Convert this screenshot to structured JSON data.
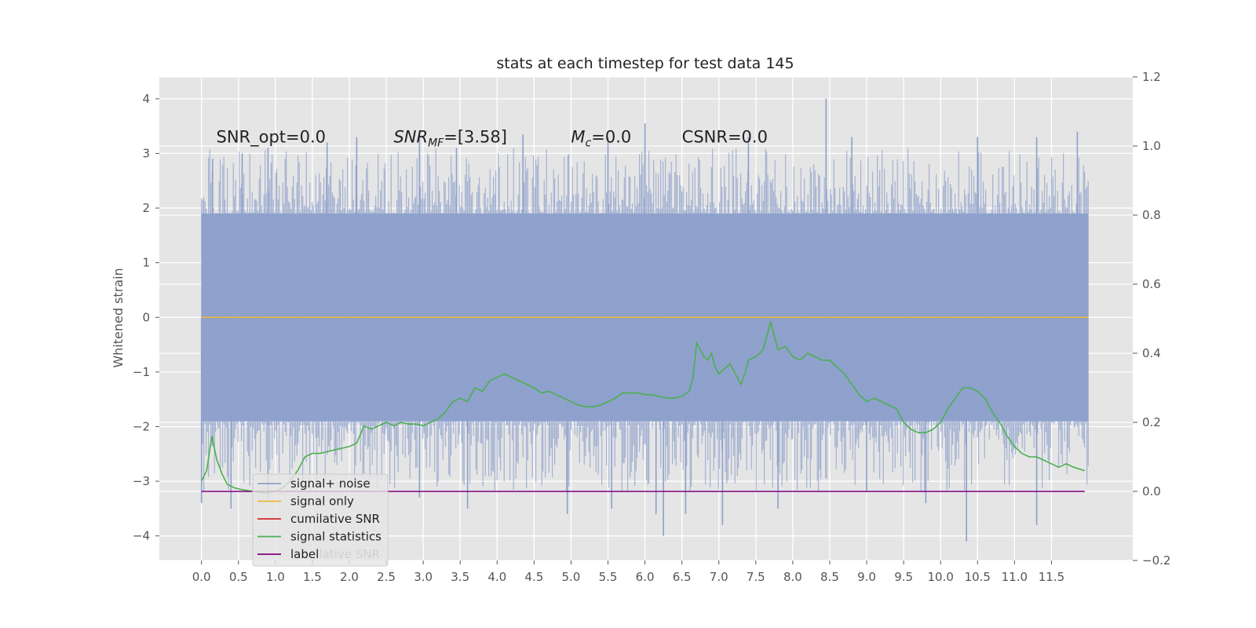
{
  "chart_data": {
    "type": "line",
    "title": "stats at each timestep for test data 145",
    "xlabel": "",
    "ylabel": "Whitened strain",
    "y2label": "",
    "xlim": [
      -0.57,
      12.6
    ],
    "ylim": [
      -4.45,
      4.4
    ],
    "y2lim": [
      -0.2,
      1.2
    ],
    "xticks": [
      "0.0",
      "0.5",
      "1.0",
      "1.5",
      "2.0",
      "2.5",
      "3.0",
      "3.5",
      "4.0",
      "4.5",
      "5.0",
      "5.5",
      "6.0",
      "6.5",
      "7.0",
      "7.5",
      "8.0",
      "8.5",
      "9.0",
      "9.5",
      "10.0",
      "10.5",
      "11.0",
      "11.5"
    ],
    "yticks": [
      "4",
      "3",
      "2",
      "1",
      "0",
      "−1",
      "−2",
      "−3",
      "−4"
    ],
    "y2ticks": [
      "1.2",
      "1.0",
      "0.8",
      "0.6",
      "0.4",
      "0.2",
      "0.0",
      "−0.2"
    ],
    "grid": true,
    "legend_position": "lower-left",
    "annotations": [
      {
        "text": "SNR_opt=0.0",
        "x": 0.2,
        "y": 3.2
      },
      {
        "text": "SNR_MF=[3.58]",
        "main": "SNR",
        "sub": "MF",
        "rest": "=[3.58]",
        "x": 2.6,
        "y": 3.2
      },
      {
        "text": "M_c=0.0",
        "main": "M",
        "sub": "c",
        "rest": "=0.0",
        "x": 5.0,
        "y": 3.2
      },
      {
        "text": "CSNR=0.0",
        "x": 6.5,
        "y": 3.2
      }
    ],
    "series": [
      {
        "name": "signal+ noise",
        "color": "#8da0cb",
        "axis": "left",
        "kind": "noise",
        "x_range": [
          0.0,
          12.0
        ],
        "band": [
          -1.9,
          1.9
        ],
        "peaks_up": [
          [
            0.15,
            2.9
          ],
          [
            0.55,
            3.0
          ],
          [
            0.9,
            3.1
          ],
          [
            1.7,
            3.2
          ],
          [
            2.1,
            3.3
          ],
          [
            2.95,
            3.4
          ],
          [
            3.45,
            3.1
          ],
          [
            4.35,
            3.35
          ],
          [
            5.5,
            3.3
          ],
          [
            6.0,
            3.55
          ],
          [
            7.4,
            3.3
          ],
          [
            8.45,
            4.0
          ],
          [
            8.8,
            3.3
          ],
          [
            10.5,
            3.3
          ],
          [
            11.3,
            3.3
          ],
          [
            11.85,
            3.4
          ]
        ],
        "peaks_down": [
          [
            0.0,
            -3.4
          ],
          [
            0.4,
            -3.5
          ],
          [
            0.9,
            -3.3
          ],
          [
            2.95,
            -3.3
          ],
          [
            3.6,
            -3.5
          ],
          [
            4.95,
            -3.6
          ],
          [
            5.55,
            -3.5
          ],
          [
            6.15,
            -3.6
          ],
          [
            6.25,
            -4.0
          ],
          [
            6.55,
            -3.6
          ],
          [
            7.05,
            -3.8
          ],
          [
            7.8,
            -3.5
          ],
          [
            9.0,
            -3.2
          ],
          [
            9.8,
            -3.4
          ],
          [
            10.35,
            -4.1
          ],
          [
            11.3,
            -3.8
          ]
        ]
      },
      {
        "name": "signal only",
        "color": "#f0b53c",
        "axis": "left",
        "x": [
          0.0,
          12.0
        ],
        "values": [
          0.0,
          0.0
        ]
      },
      {
        "name": "cumilative SNR",
        "color": "#d62728",
        "axis": "right",
        "x": [],
        "values": []
      },
      {
        "name": "signal statistics",
        "color": "#4caf50",
        "axis": "right",
        "x": [
          0.0,
          0.07,
          0.14,
          0.21,
          0.28,
          0.35,
          0.45,
          0.55,
          0.7,
          0.85,
          1.0,
          1.1,
          1.2,
          1.3,
          1.4,
          1.5,
          1.6,
          1.7,
          1.8,
          1.9,
          2.0,
          2.1,
          2.2,
          2.3,
          2.4,
          2.5,
          2.6,
          2.7,
          2.8,
          2.9,
          3.0,
          3.1,
          3.2,
          3.3,
          3.4,
          3.5,
          3.6,
          3.7,
          3.8,
          3.9,
          4.0,
          4.1,
          4.2,
          4.3,
          4.4,
          4.5,
          4.6,
          4.7,
          4.8,
          4.9,
          5.0,
          5.1,
          5.2,
          5.3,
          5.4,
          5.5,
          5.6,
          5.7,
          5.8,
          5.9,
          6.0,
          6.1,
          6.2,
          6.3,
          6.4,
          6.5,
          6.6,
          6.65,
          6.7,
          6.75,
          6.8,
          6.85,
          6.9,
          6.95,
          7.0,
          7.05,
          7.1,
          7.15,
          7.2,
          7.3,
          7.35,
          7.4,
          7.5,
          7.55,
          7.6,
          7.65,
          7.7,
          7.75,
          7.8,
          7.9,
          8.0,
          8.1,
          8.2,
          8.3,
          8.4,
          8.5,
          8.6,
          8.7,
          8.8,
          8.9,
          9.0,
          9.1,
          9.2,
          9.3,
          9.4,
          9.5,
          9.6,
          9.7,
          9.8,
          9.9,
          10.0,
          10.1,
          10.2,
          10.3,
          10.4,
          10.5,
          10.6,
          10.7,
          10.8,
          10.9,
          11.0,
          11.1,
          11.2,
          11.3,
          11.4,
          11.5,
          11.6,
          11.7,
          11.8,
          11.95
        ],
        "values": [
          0.03,
          0.06,
          0.16,
          0.09,
          0.05,
          0.02,
          0.01,
          0.005,
          0.0,
          -0.005,
          0.0,
          0.01,
          0.03,
          0.06,
          0.1,
          0.11,
          0.11,
          0.115,
          0.12,
          0.125,
          0.13,
          0.14,
          0.19,
          0.18,
          0.19,
          0.2,
          0.19,
          0.2,
          0.195,
          0.195,
          0.19,
          0.2,
          0.21,
          0.23,
          0.26,
          0.27,
          0.26,
          0.3,
          0.29,
          0.32,
          0.33,
          0.34,
          0.33,
          0.32,
          0.31,
          0.3,
          0.285,
          0.29,
          0.28,
          0.27,
          0.26,
          0.25,
          0.245,
          0.245,
          0.25,
          0.26,
          0.27,
          0.285,
          0.285,
          0.285,
          0.28,
          0.28,
          0.275,
          0.27,
          0.27,
          0.275,
          0.29,
          0.33,
          0.43,
          0.41,
          0.39,
          0.38,
          0.4,
          0.36,
          0.34,
          0.35,
          0.36,
          0.37,
          0.35,
          0.31,
          0.34,
          0.38,
          0.39,
          0.4,
          0.41,
          0.45,
          0.49,
          0.45,
          0.41,
          0.42,
          0.39,
          0.38,
          0.4,
          0.39,
          0.38,
          0.38,
          0.36,
          0.34,
          0.31,
          0.28,
          0.26,
          0.27,
          0.26,
          0.25,
          0.24,
          0.2,
          0.18,
          0.17,
          0.17,
          0.18,
          0.2,
          0.24,
          0.27,
          0.3,
          0.3,
          0.29,
          0.27,
          0.23,
          0.2,
          0.16,
          0.13,
          0.11,
          0.1,
          0.1,
          0.09,
          0.08,
          0.07,
          0.08,
          0.07,
          0.06
        ]
      },
      {
        "name": "label",
        "color": "#800080",
        "axis": "right",
        "x": [
          0.0,
          11.95
        ],
        "values": [
          0.0,
          0.0
        ]
      }
    ],
    "legend_overlap_text": "cumilative SNR"
  }
}
